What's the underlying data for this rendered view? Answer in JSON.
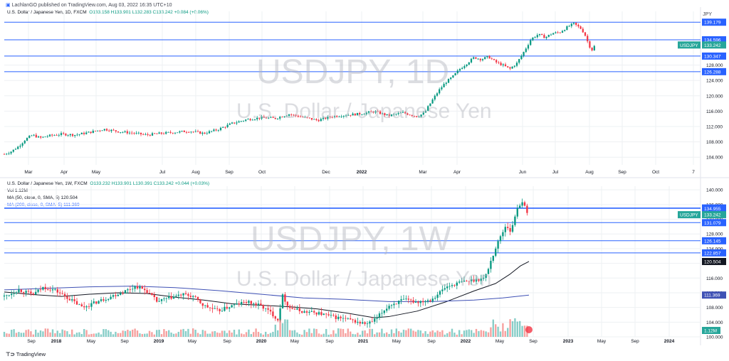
{
  "publish_line": "LachlanGO published on TradingView.com, Aug 03, 2022 16:35 UTC+10",
  "footer_brand": "TradingView",
  "colors": {
    "up": "#089981",
    "down": "#f23645",
    "level": "#2962ff",
    "ma50": "#131722",
    "ma200": "#3f51b5",
    "volume_up": "#26a69a",
    "volume_down": "#ef5350",
    "price_label": "#26a69a",
    "grid": "#eef0f3"
  },
  "top_pane": {
    "legend": {
      "title": "U.S. Dollar / Japanese Yen, 1D, FXCM",
      "ohlc": "O133.158  H133.901  L132.283  C133.242  +0.084 (+0.06%)"
    },
    "watermark_symbol": "USDJPY, 1D",
    "watermark_name": "U.S. Dollar / Japanese Yen",
    "currency": "JPY"
  },
  "bottom_pane": {
    "legend": {
      "title": "U.S. Dollar / Japanese Yen, 1W, FXCM",
      "ohlc": "O133.232  H133.901  L130.391  C133.242  +0.044 (+0.03%)",
      "vol": "Vol  1.12M",
      "ma50": "MA (50, close, 0, SMA, 5)  120.504",
      "ma200": "MA (200, close, 0, SMA, 5)  111.369"
    },
    "watermark_symbol": "USDJPY, 1W",
    "watermark_name": "U.S. Dollar / Japanese Yen"
  },
  "chart_data": [
    {
      "type": "candlestick",
      "timeframe": "1D",
      "symbol": "USDJPY",
      "y_ticks": [
        104.0,
        108.0,
        112.0,
        116.0,
        120.0,
        124.0,
        128.0
      ],
      "ylim": [
        102.0,
        142.0
      ],
      "x_ticks": [
        "Mar",
        "Apr",
        "May",
        "Jul",
        "Aug",
        "Sep",
        "Oct",
        "Dec",
        "2022",
        "Mar",
        "Apr",
        "Jun",
        "Jul",
        "Aug",
        "Sep",
        "Oct",
        "7"
      ],
      "levels": [
        139.179,
        134.596,
        130.347,
        126.288
      ],
      "last_price": 133.242,
      "last_label": "USDJPY",
      "path_points": [
        [
          0,
          104.8
        ],
        [
          10,
          105.5
        ],
        [
          20,
          106.8
        ],
        [
          30,
          108.7
        ],
        [
          40,
          109.8
        ],
        [
          50,
          109.0
        ],
        [
          60,
          109.5
        ],
        [
          80,
          110.0
        ],
        [
          100,
          109.8
        ],
        [
          120,
          110.5
        ],
        [
          140,
          111.3
        ],
        [
          160,
          110.7
        ],
        [
          180,
          110.3
        ],
        [
          200,
          109.8
        ],
        [
          220,
          110.2
        ],
        [
          240,
          110.5
        ],
        [
          260,
          110.8
        ],
        [
          280,
          110.2
        ],
        [
          300,
          111.2
        ],
        [
          320,
          112.8
        ],
        [
          340,
          113.8
        ],
        [
          360,
          114.3
        ],
        [
          380,
          114.1
        ],
        [
          400,
          115.2
        ],
        [
          420,
          114.4
        ],
        [
          440,
          113.6
        ],
        [
          460,
          114.6
        ],
        [
          480,
          115.0
        ],
        [
          500,
          115.3
        ],
        [
          520,
          115.9
        ],
        [
          540,
          114.8
        ],
        [
          560,
          115.6
        ],
        [
          580,
          114.6
        ],
        [
          590,
          115.5
        ],
        [
          600,
          118.5
        ],
        [
          610,
          121.3
        ],
        [
          620,
          123.5
        ],
        [
          630,
          125.0
        ],
        [
          640,
          127.0
        ],
        [
          650,
          128.5
        ],
        [
          660,
          130.0
        ],
        [
          670,
          129.5
        ],
        [
          680,
          130.2
        ],
        [
          690,
          128.8
        ],
        [
          700,
          128.0
        ],
        [
          710,
          127.0
        ],
        [
          720,
          128.5
        ],
        [
          730,
          131.5
        ],
        [
          740,
          134.8
        ],
        [
          750,
          136.0
        ],
        [
          760,
          135.2
        ],
        [
          770,
          136.3
        ],
        [
          780,
          136.5
        ],
        [
          790,
          137.8
        ],
        [
          800,
          138.8
        ],
        [
          810,
          137.5
        ],
        [
          815,
          136.2
        ],
        [
          820,
          133.8
        ],
        [
          825,
          131.8
        ],
        [
          830,
          133.242
        ]
      ]
    },
    {
      "type": "candlestick",
      "timeframe": "1W",
      "symbol": "USDJPY",
      "y_ticks": [
        100.0,
        104.0,
        108.0,
        112.0,
        116.0,
        120.0,
        124.0,
        128.0,
        132.0,
        136.0,
        140.0
      ],
      "ylim": [
        100.0,
        141.0
      ],
      "x_ticks": [
        "Sep",
        "2018",
        "May",
        "Sep",
        "2019",
        "May",
        "Sep",
        "2020",
        "May",
        "Sep",
        "2021",
        "May",
        "Sep",
        "2022",
        "May",
        "Sep",
        "2023",
        "May",
        "Sep",
        "2024"
      ],
      "levels": [
        135.076,
        134.955,
        131.079,
        126.145,
        122.857
      ],
      "ma_labels": [
        120.504,
        111.369
      ],
      "volume_label": "1.12M",
      "last_price": 133.242,
      "last_label": "USDJPY",
      "path_points": [
        [
          0,
          111.0
        ],
        [
          20,
          112.8
        ],
        [
          40,
          111.5
        ],
        [
          55,
          113.5
        ],
        [
          70,
          112.8
        ],
        [
          90,
          110.5
        ],
        [
          110,
          108.0
        ],
        [
          130,
          109.5
        ],
        [
          150,
          111.0
        ],
        [
          170,
          112.5
        ],
        [
          185,
          113.8
        ],
        [
          200,
          112.5
        ],
        [
          215,
          109.5
        ],
        [
          230,
          110.5
        ],
        [
          250,
          111.5
        ],
        [
          265,
          111.0
        ],
        [
          280,
          108.5
        ],
        [
          300,
          107.0
        ],
        [
          320,
          108.5
        ],
        [
          340,
          109.5
        ],
        [
          360,
          108.5
        ],
        [
          375,
          106.5
        ],
        [
          385,
          104.5
        ],
        [
          390,
          111.5
        ],
        [
          400,
          108.0
        ],
        [
          420,
          106.8
        ],
        [
          440,
          106.5
        ],
        [
          460,
          105.5
        ],
        [
          480,
          104.8
        ],
        [
          500,
          103.8
        ],
        [
          510,
          103.5
        ],
        [
          520,
          104.5
        ],
        [
          540,
          108.5
        ],
        [
          560,
          110.0
        ],
        [
          580,
          109.5
        ],
        [
          600,
          110.2
        ],
        [
          620,
          113.5
        ],
        [
          640,
          114.8
        ],
        [
          660,
          115.5
        ],
        [
          675,
          116.0
        ],
        [
          685,
          121.5
        ],
        [
          695,
          126.5
        ],
        [
          705,
          130.5
        ],
        [
          712,
          128.5
        ],
        [
          720,
          135.0
        ],
        [
          728,
          137.0
        ],
        [
          734,
          133.5
        ],
        [
          737,
          133.242
        ]
      ],
      "ma50_points": [
        [
          0,
          112.2
        ],
        [
          40,
          111.5
        ],
        [
          80,
          111.0
        ],
        [
          120,
          111.6
        ],
        [
          160,
          112.0
        ],
        [
          200,
          111.8
        ],
        [
          240,
          110.8
        ],
        [
          280,
          110.0
        ],
        [
          320,
          109.0
        ],
        [
          360,
          108.6
        ],
        [
          400,
          108.2
        ],
        [
          440,
          107.6
        ],
        [
          480,
          106.5
        ],
        [
          520,
          105.2
        ],
        [
          540,
          105.5
        ],
        [
          580,
          107.0
        ],
        [
          620,
          109.5
        ],
        [
          660,
          112.5
        ],
        [
          690,
          114.5
        ],
        [
          710,
          117.0
        ],
        [
          725,
          119.3
        ],
        [
          737,
          120.504
        ]
      ],
      "ma200_points": [
        [
          0,
          112.8
        ],
        [
          60,
          113.2
        ],
        [
          120,
          113.6
        ],
        [
          180,
          113.8
        ],
        [
          240,
          113.4
        ],
        [
          300,
          112.6
        ],
        [
          360,
          111.6
        ],
        [
          420,
          110.6
        ],
        [
          480,
          110.2
        ],
        [
          540,
          109.6
        ],
        [
          600,
          109.6
        ],
        [
          660,
          110.0
        ],
        [
          700,
          110.6
        ],
        [
          737,
          111.369
        ]
      ]
    }
  ]
}
